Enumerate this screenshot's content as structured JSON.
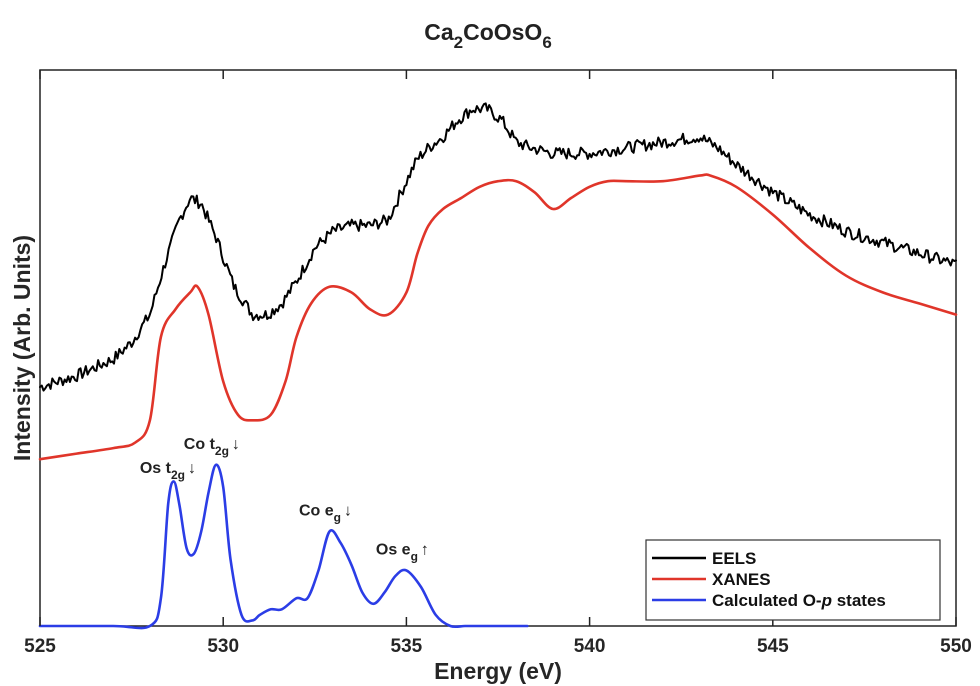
{
  "chart_data": {
    "type": "line",
    "title": {
      "main": "Ca",
      "sub1": "2",
      "mid": "CoOsO",
      "sub2": "6"
    },
    "xlabel": "Energy (eV)",
    "ylabel": "Intensity (Arb. Units)",
    "xlim": [
      525,
      550
    ],
    "ylim": [
      0,
      1
    ],
    "x_ticks": [
      525,
      530,
      535,
      540,
      545,
      550
    ],
    "x_tick_labels": [
      "525",
      "530",
      "535",
      "540",
      "545",
      "550"
    ],
    "y_ticks_shown": false,
    "grid": false,
    "legend_position": "bottom-right",
    "series": [
      {
        "name": "EELS",
        "color": "#000000",
        "noisy": true,
        "x": [
          525,
          526,
          527,
          527.5,
          528,
          528.4,
          528.8,
          529.1,
          529.4,
          529.8,
          530.3,
          530.8,
          531.2,
          531.6,
          532,
          532.5,
          533,
          533.5,
          534,
          534.5,
          535,
          535.3,
          535.6,
          536,
          536.4,
          536.8,
          537.2,
          537.6,
          538,
          538.4,
          539,
          540,
          541,
          542,
          543,
          543.5,
          544,
          545,
          546,
          547,
          548,
          549,
          550
        ],
        "values": [
          0.43,
          0.45,
          0.48,
          0.51,
          0.56,
          0.65,
          0.73,
          0.77,
          0.76,
          0.7,
          0.61,
          0.56,
          0.56,
          0.58,
          0.62,
          0.68,
          0.71,
          0.72,
          0.72,
          0.73,
          0.8,
          0.84,
          0.86,
          0.88,
          0.91,
          0.93,
          0.93,
          0.91,
          0.87,
          0.86,
          0.85,
          0.85,
          0.86,
          0.87,
          0.88,
          0.86,
          0.83,
          0.78,
          0.74,
          0.71,
          0.69,
          0.67,
          0.65
        ]
      },
      {
        "name": "XANES",
        "color": "#e0352a",
        "noisy": false,
        "x": [
          525,
          526,
          527,
          527.6,
          528,
          528.3,
          528.7,
          529.1,
          529.3,
          529.6,
          530,
          530.4,
          530.8,
          531.3,
          531.7,
          532,
          532.4,
          532.9,
          533.5,
          534,
          534.5,
          535,
          535.3,
          535.6,
          536,
          536.5,
          537,
          537.5,
          538,
          538.5,
          539,
          539.5,
          540,
          540.5,
          541,
          542,
          543,
          543.3,
          544,
          545,
          546,
          547,
          548,
          549,
          550
        ],
        "values": [
          0.3,
          0.31,
          0.32,
          0.33,
          0.37,
          0.52,
          0.57,
          0.6,
          0.61,
          0.56,
          0.44,
          0.38,
          0.37,
          0.38,
          0.44,
          0.52,
          0.58,
          0.61,
          0.6,
          0.57,
          0.56,
          0.6,
          0.67,
          0.72,
          0.75,
          0.77,
          0.79,
          0.8,
          0.8,
          0.78,
          0.75,
          0.77,
          0.79,
          0.8,
          0.8,
          0.8,
          0.81,
          0.81,
          0.79,
          0.74,
          0.68,
          0.63,
          0.6,
          0.58,
          0.56
        ]
      },
      {
        "name": "Calculated O-p states",
        "name_prefix": "Calculated O-",
        "name_italic": "p",
        "name_suffix": " states",
        "color": "#2b3de6",
        "noisy": false,
        "x": [
          525,
          527,
          528,
          528.3,
          528.5,
          528.65,
          528.8,
          529,
          529.2,
          529.4,
          529.6,
          529.8,
          530,
          530.2,
          530.5,
          530.8,
          531,
          531.3,
          531.6,
          532,
          532.3,
          532.6,
          532.9,
          533.2,
          533.5,
          533.8,
          534.1,
          534.4,
          534.7,
          535,
          535.4,
          535.8,
          536.2,
          536.6,
          537,
          538,
          538.3
        ],
        "values": [
          0.0,
          0.0,
          0.0,
          0.05,
          0.22,
          0.26,
          0.22,
          0.14,
          0.13,
          0.17,
          0.24,
          0.29,
          0.25,
          0.12,
          0.02,
          0.01,
          0.02,
          0.03,
          0.03,
          0.05,
          0.05,
          0.1,
          0.17,
          0.15,
          0.11,
          0.06,
          0.04,
          0.06,
          0.09,
          0.1,
          0.07,
          0.02,
          0.0,
          0.0,
          0.0,
          0.0,
          0.0
        ]
      }
    ],
    "annotations": [
      {
        "id": "os-t2g",
        "text": "Os t",
        "sub": "2g",
        "after": "↓",
        "x": 528.6
      },
      {
        "id": "co-t2g",
        "text": "Co t",
        "sub": "2g",
        "after": "↓",
        "x": 529.8
      },
      {
        "id": "co-eg",
        "text": "Co e",
        "sub": "g",
        "after": "↓",
        "x": 532.9
      },
      {
        "id": "os-eg",
        "text": "Os e",
        "sub": "g",
        "after": "↑",
        "x": 535.0
      }
    ]
  }
}
